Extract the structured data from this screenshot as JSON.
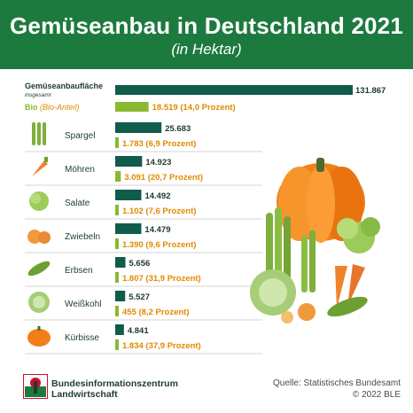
{
  "header": {
    "title": "Gemüseanbau in Deutschland 2021",
    "subtitle": "(in Hektar)"
  },
  "legend": {
    "total_label": "Gemüseanbaufläche",
    "total_sublabel": "insgesamt",
    "bio_label": "Bio",
    "bio_sublabel": "(Bio-Anteil)"
  },
  "footer": {
    "org_line1": "Bundesinformationszentrum",
    "org_line2": "Landwirtschaft",
    "source_line1": "Quelle: Statistisches Bundesamt",
    "source_line2": "© 2022 BLE"
  },
  "colors": {
    "header": "#1d7a3e",
    "total_bar": "#0f5c4a",
    "bio_bar": "#8ab833",
    "bio_text": "#e08a00"
  },
  "chart_data": {
    "type": "bar",
    "orientation": "horizontal",
    "title": "Gemüseanbau in Deutschland 2021",
    "subtitle": "(in Hektar)",
    "categories": [
      "Gemüseanbaufläche insgesamt",
      "Spargel",
      "Möhren",
      "Salate",
      "Zwiebeln",
      "Erbsen",
      "Weißkohl",
      "Kürbisse"
    ],
    "category_icons": [
      "",
      "asparagus-icon",
      "carrot-icon",
      "lettuce-icon",
      "onion-icon",
      "peas-icon",
      "cabbage-icon",
      "pumpkin-icon"
    ],
    "series": [
      {
        "name": "Gemüseanbaufläche insgesamt",
        "values": [
          131867,
          25683,
          14923,
          14492,
          14479,
          5656,
          5527,
          4841
        ],
        "labels": [
          "131.867",
          "25.683",
          "14.923",
          "14.492",
          "14.479",
          "5.656",
          "5.527",
          "4.841"
        ]
      },
      {
        "name": "Bio (Bio-Anteil)",
        "values": [
          18519,
          1783,
          3091,
          1102,
          1390,
          1807,
          455,
          1834
        ],
        "labels": [
          "18.519 (14,0 Prozent)",
          "1.783 (6,9 Prozent)",
          "3.091 (20,7 Prozent)",
          "1.102 (7,6 Prozent)",
          "1.390 (9,6 Prozent)",
          "1.807 (31,9 Prozent)",
          "455 (8,2 Prozent)",
          "1.834 (37,9 Prozent)"
        ]
      }
    ],
    "xlim": [
      0,
      131867
    ],
    "grid": false
  }
}
